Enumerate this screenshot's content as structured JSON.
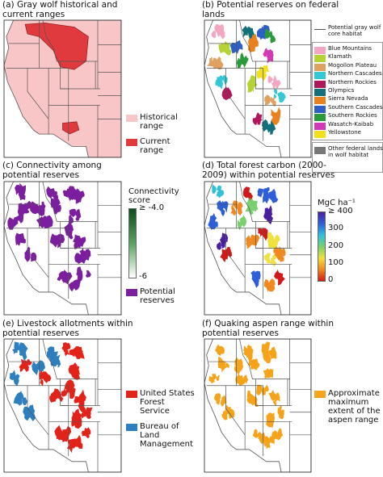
{
  "panels": [
    {
      "title": "(a) Gray wolf historical and current ranges",
      "legend": [
        {
          "label": "Historical range",
          "color": "#f8c6c6"
        },
        {
          "label": "Current range",
          "color": "#e0393e"
        }
      ]
    },
    {
      "title": "(b) Potential reserves on federal lands",
      "legend": [
        {
          "label": "Potential gray wolf core habitat",
          "color": "#555555",
          "swatch": "line"
        },
        {
          "label": "Blue Mountains",
          "color": "#f4a6c0"
        },
        {
          "label": "Klamath",
          "color": "#b5d334"
        },
        {
          "label": "Mogollon Plateau",
          "color": "#e0a060"
        },
        {
          "label": "Northern Cascades",
          "color": "#33c7d8"
        },
        {
          "label": "Northern Rockies",
          "color": "#b0165a"
        },
        {
          "label": "Olympics",
          "color": "#13707a"
        },
        {
          "label": "Sierra Nevada",
          "color": "#e8821e"
        },
        {
          "label": "Southern Cascades",
          "color": "#2f5fc4"
        },
        {
          "label": "Southern Rockies",
          "color": "#2a9a3a"
        },
        {
          "label": "Wasatch-Kaibab",
          "color": "#d23ab4"
        },
        {
          "label": "Yellowstone",
          "color": "#f2e01e"
        },
        {
          "label": "Other federal lands in wolf habitat",
          "color": "#777777"
        }
      ]
    },
    {
      "title": "(c) Connectivity among potential reserves",
      "colorbar": {
        "label": "Connectivity score",
        "ticks": [
          "≥ -4.0",
          "-6"
        ],
        "colors": [
          "#0b4d1f",
          "#5aa35e",
          "#ffffff"
        ]
      },
      "legend": [
        {
          "label": "Potential reserves",
          "color": "#7b1f9e"
        }
      ]
    },
    {
      "title": "(d) Total forest carbon (2000-2009) within potential reserves",
      "colorbar": {
        "label": "MgC ha⁻¹",
        "ticks": [
          "≥ 400",
          "300",
          "200",
          "100",
          "0"
        ],
        "colors": [
          "#4b1fa0",
          "#2e5fd8",
          "#30c0d8",
          "#7ad070",
          "#f0e040",
          "#f08a20",
          "#d01a1a"
        ]
      }
    },
    {
      "title": "(e) Livestock allotments within potential reserves",
      "legend": [
        {
          "label": "United States Forest Service",
          "color": "#e2231a"
        },
        {
          "label": "Bureau of Land Management",
          "color": "#2e7fc0"
        }
      ]
    },
    {
      "title": "(f) Quaking aspen range within potential reserves",
      "legend": [
        {
          "label": "Approximate maximum extent of the aspen range",
          "color": "#f5a31a"
        }
      ]
    }
  ]
}
